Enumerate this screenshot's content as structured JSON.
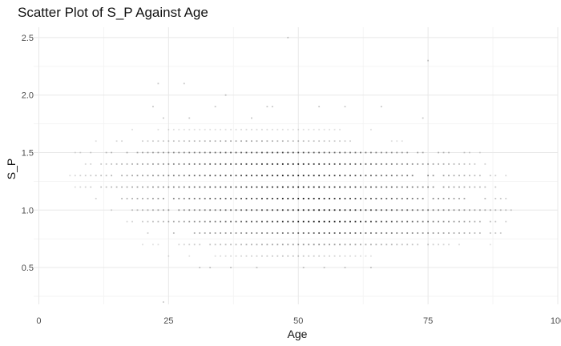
{
  "chart_data": {
    "type": "scatter",
    "title": "Scatter Plot of S_P Against Age",
    "xlabel": "Age",
    "ylabel": "S_P",
    "xlim": [
      -1,
      100
    ],
    "ylim": [
      0.18,
      2.59
    ],
    "x_ticks": [
      0,
      25,
      50,
      75,
      100
    ],
    "x_tick_labels": [
      "0",
      "25",
      "50",
      "75",
      "100"
    ],
    "y_ticks": [
      0.5,
      1.0,
      1.5,
      2.0,
      2.5
    ],
    "y_tick_labels": [
      "0.5",
      "1.0",
      "1.5",
      "2.0",
      "2.5"
    ],
    "grid": true,
    "x_minor_ticks": [
      12.5,
      37.5,
      62.5,
      87.5
    ],
    "y_minor_ticks": [
      0.25,
      0.75,
      1.25,
      1.75,
      2.25
    ],
    "point_color": "#000000",
    "bands": [
      {
        "y": 0.6,
        "x_min": 22,
        "x_max": 75,
        "density": 0.25
      },
      {
        "y": 0.7,
        "x_min": 18,
        "x_max": 88,
        "density": 0.45
      },
      {
        "y": 0.8,
        "x_min": 15,
        "x_max": 96,
        "density": 0.7
      },
      {
        "y": 0.9,
        "x_min": 17,
        "x_max": 92,
        "density": 0.95
      },
      {
        "y": 1.0,
        "x_min": 13,
        "x_max": 95,
        "density": 0.95
      },
      {
        "y": 1.1,
        "x_min": 9,
        "x_max": 93,
        "density": 0.95
      },
      {
        "y": 1.2,
        "x_min": 7,
        "x_max": 92,
        "density": 0.95
      },
      {
        "y": 1.3,
        "x_min": 6,
        "x_max": 91,
        "density": 0.95
      },
      {
        "y": 1.4,
        "x_min": 8,
        "x_max": 88,
        "density": 0.95
      },
      {
        "y": 1.5,
        "x_min": 6,
        "x_max": 87,
        "density": 0.75
      },
      {
        "y": 1.6,
        "x_min": 3,
        "x_max": 77,
        "density": 0.35
      },
      {
        "y": 1.7,
        "x_min": 11,
        "x_max": 72,
        "density": 0.15
      }
    ],
    "outliers": [
      [
        24,
        0.2
      ],
      [
        22,
        1.9
      ],
      [
        24,
        1.8
      ],
      [
        29,
        1.8
      ],
      [
        34,
        1.9
      ],
      [
        41,
        1.8
      ],
      [
        44,
        1.9
      ],
      [
        45,
        1.9
      ],
      [
        54,
        1.9
      ],
      [
        59,
        1.9
      ],
      [
        66,
        1.9
      ],
      [
        74,
        1.8
      ],
      [
        23,
        2.1
      ],
      [
        28,
        2.1
      ],
      [
        36,
        2.0
      ],
      [
        48,
        2.5
      ],
      [
        75,
        2.3
      ],
      [
        31,
        0.5
      ],
      [
        33,
        0.5
      ],
      [
        37,
        0.5
      ],
      [
        42,
        0.5
      ],
      [
        51,
        0.5
      ],
      [
        55,
        0.5
      ],
      [
        64,
        0.5
      ],
      [
        59,
        0.5
      ]
    ]
  }
}
